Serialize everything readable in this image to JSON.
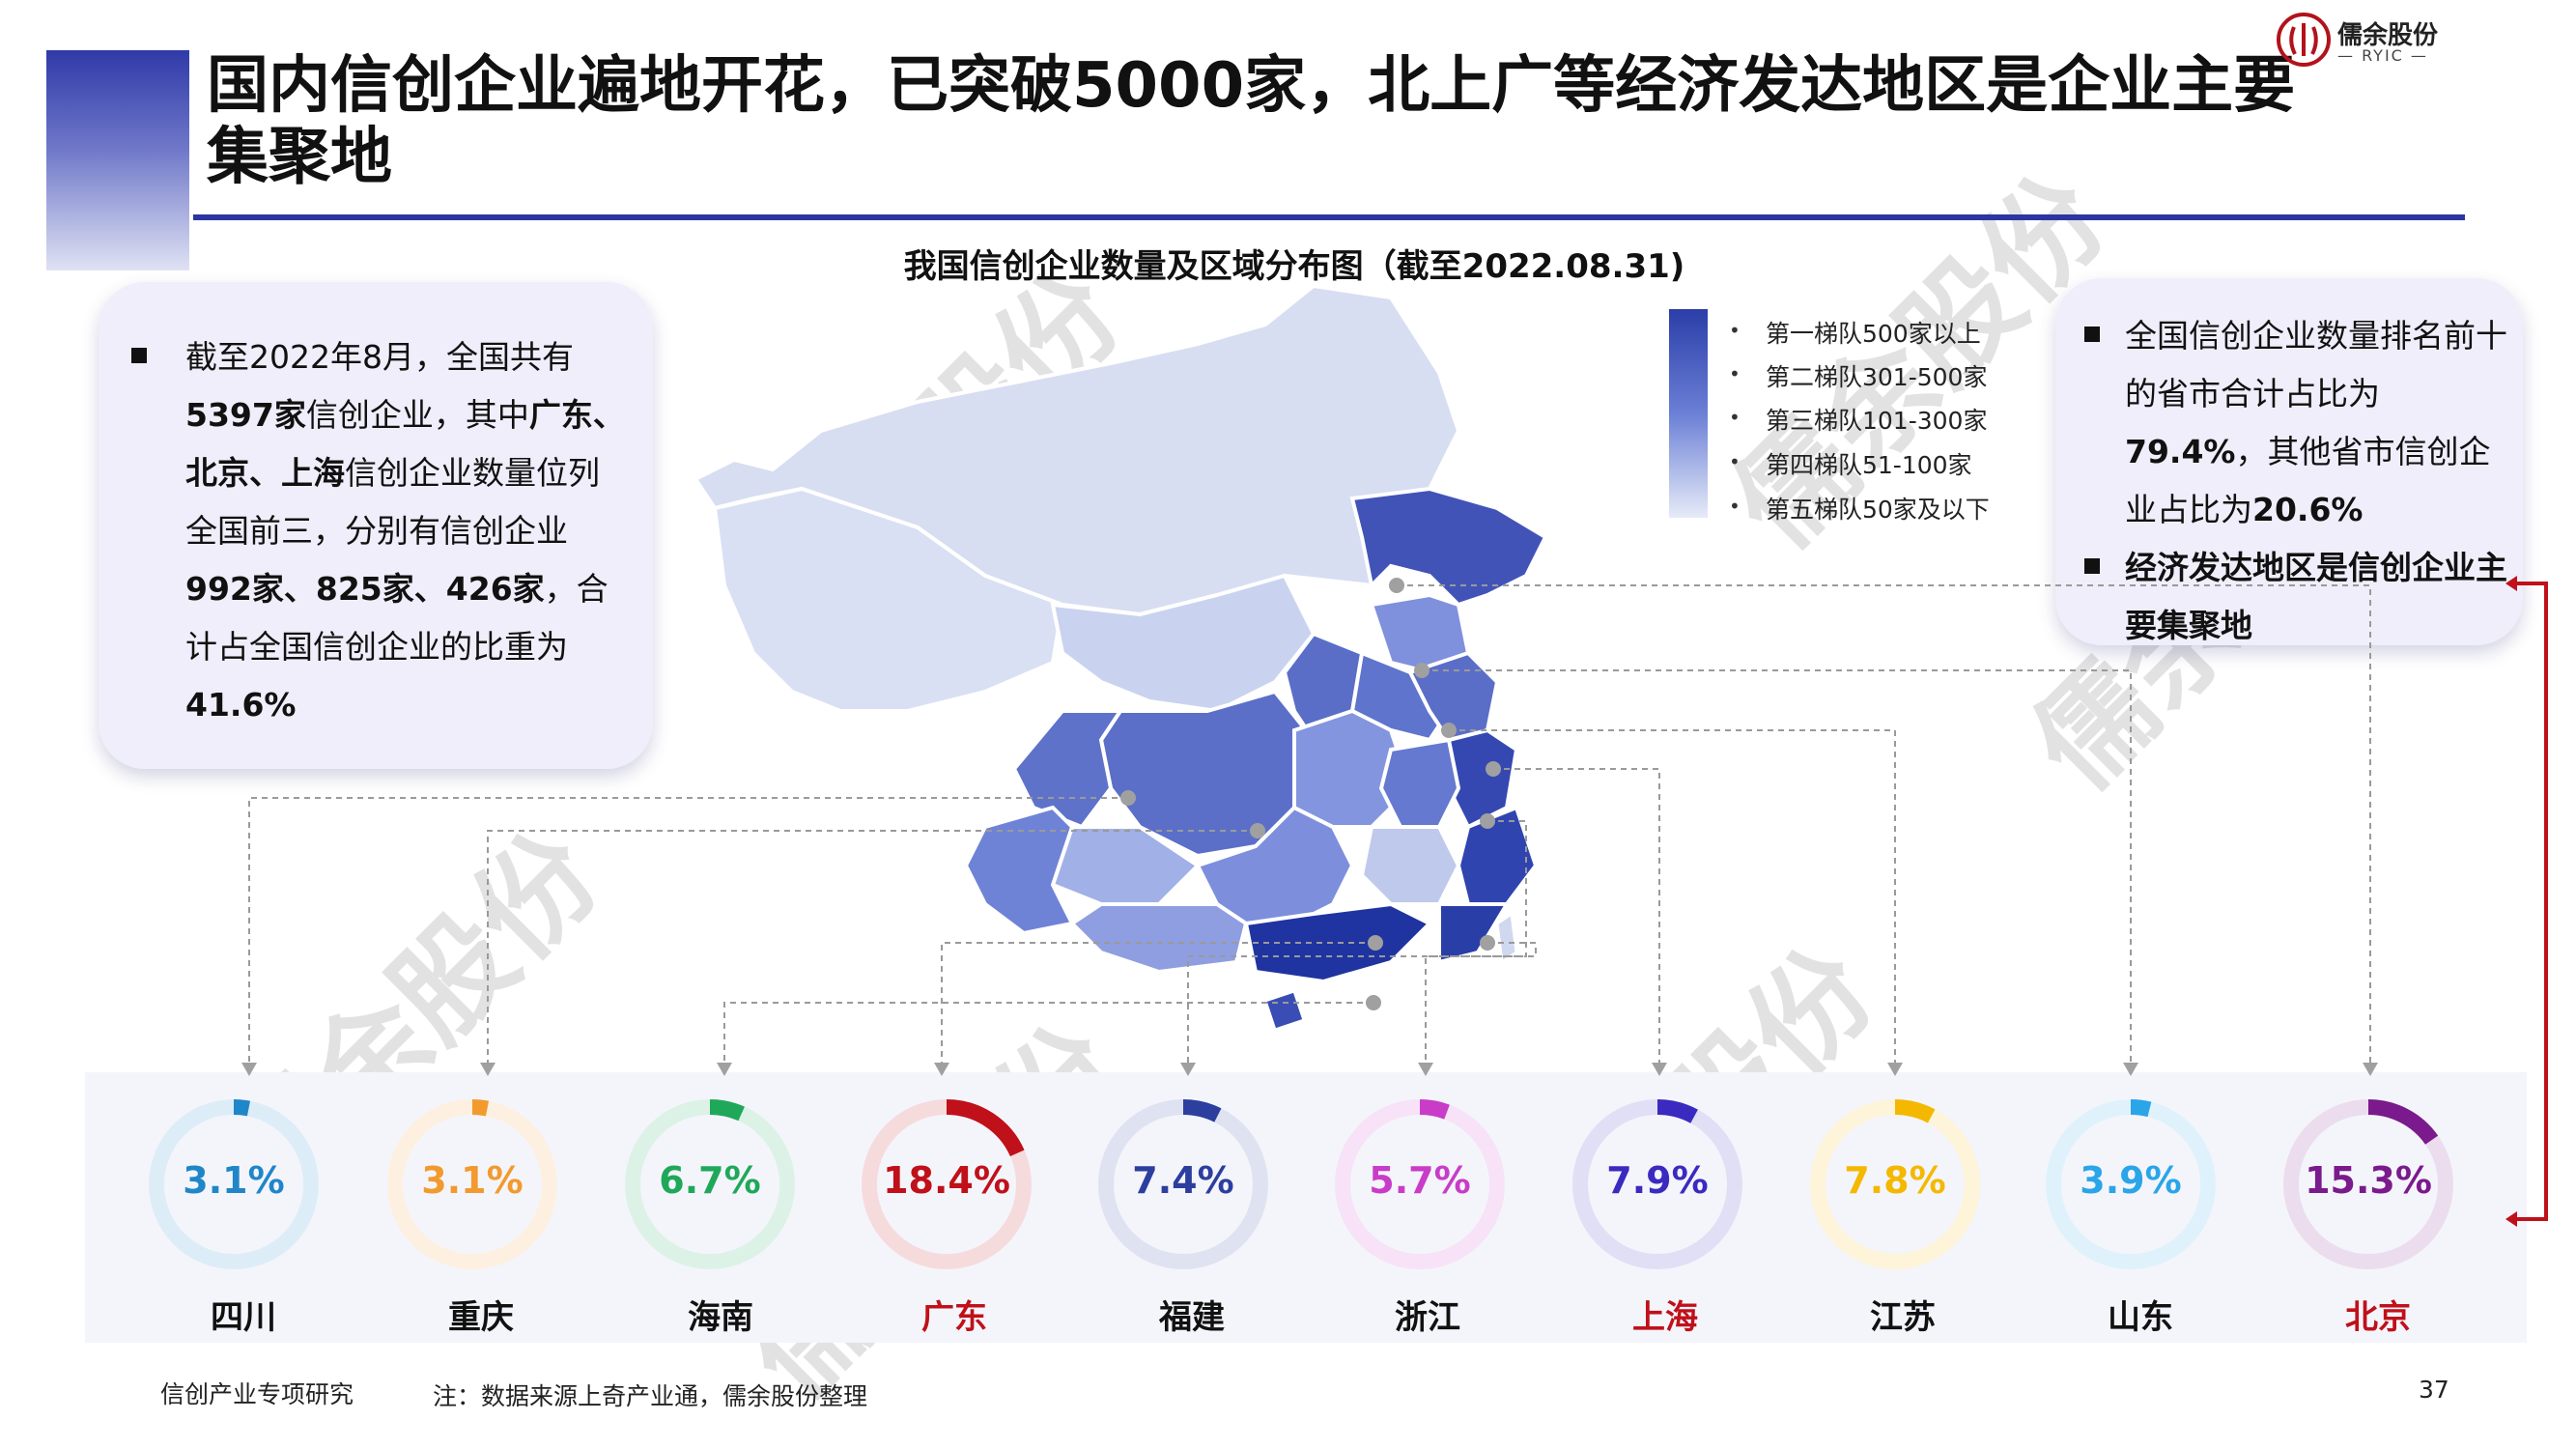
{
  "header": {
    "title": "国内信创企业遍地开花，已突破5000家，北上广等经济发达地区是企业主要集聚地",
    "logo_cn": "儒余股份",
    "logo_en": "— RYIC —"
  },
  "map": {
    "title": "我国信创企业数量及区域分布图（截至2022.08.31)",
    "legend": [
      "第一梯队500家以上",
      "第二梯队301-500家",
      "第三梯队101-300家",
      "第四梯队51-100家",
      "第五梯队50家及以下"
    ],
    "legend_colors": [
      "#2b3ea8",
      "#4a5ec4",
      "#6f83d6",
      "#a7b6e8",
      "#dfe6f6"
    ]
  },
  "left_card": {
    "p1": "截至2022年8月，全国共有",
    "b1": "5397家",
    "p2": "信创企业，其中",
    "b2": "广东、北京、上海",
    "p3": "信创企业数量位列全国前三，分别有信创企业",
    "b3": "992家、825家、426家",
    "p4": "，合计占全国信创企业的比重为",
    "b4": "41.6%"
  },
  "right_card": {
    "p1": "全国信创企业数量排名前十的省市合计占比为",
    "b1": "79.4%",
    "p2": "，其他省市信创企业占比为",
    "b2": "20.6%",
    "bullet2": "经济发达地区是信创企业主要集聚地"
  },
  "chart_data": {
    "type": "donut",
    "categories": [
      "四川",
      "重庆",
      "海南",
      "广东",
      "福建",
      "浙江",
      "上海",
      "江苏",
      "山东",
      "北京"
    ],
    "values": [
      3.1,
      3.1,
      6.7,
      18.4,
      7.4,
      5.7,
      7.9,
      7.8,
      3.9,
      15.3
    ],
    "labels": [
      "3.1%",
      "3.1%",
      "6.7%",
      "18.4%",
      "7.4%",
      "5.7%",
      "7.9%",
      "7.8%",
      "3.9%",
      "15.3%"
    ],
    "colors": [
      "#1f86c8",
      "#f29a2e",
      "#1fa85a",
      "#c0101a",
      "#2c3e9e",
      "#c83cc8",
      "#3a2ac0",
      "#f4b800",
      "#2aa5e8",
      "#7a1a8c"
    ],
    "name_colors": [
      "#111111",
      "#111111",
      "#111111",
      "#c0101a",
      "#111111",
      "#111111",
      "#c0101a",
      "#111111",
      "#111111",
      "#c0101a"
    ]
  },
  "footer": {
    "left": "信创产业专项研究",
    "note": "注：数据来源上奇产业通，儒余股份整理",
    "page": "37"
  },
  "watermark": "儒余股份"
}
